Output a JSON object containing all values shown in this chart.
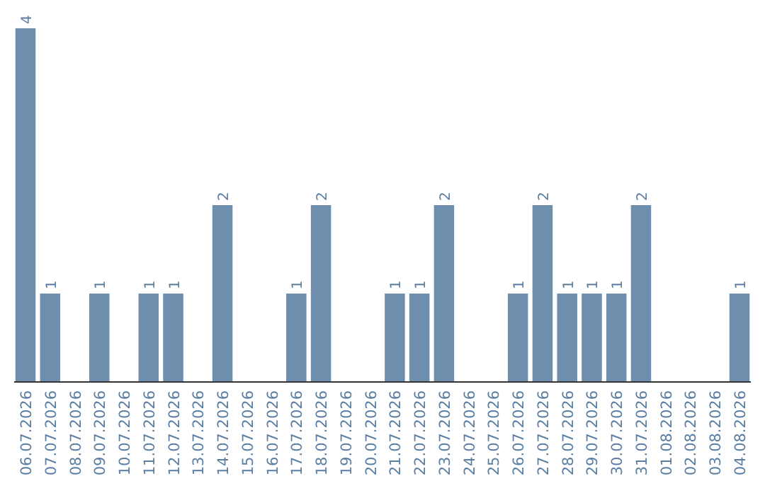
{
  "chart_data": {
    "type": "bar",
    "categories": [
      "06.07.2026",
      "07.07.2026",
      "08.07.2026",
      "09.07.2026",
      "10.07.2026",
      "11.07.2026",
      "12.07.2026",
      "13.07.2026",
      "14.07.2026",
      "15.07.2026",
      "16.07.2026",
      "17.07.2026",
      "18.07.2026",
      "19.07.2026",
      "20.07.2026",
      "21.07.2026",
      "22.07.2026",
      "23.07.2026",
      "24.07.2026",
      "25.07.2026",
      "26.07.2026",
      "27.07.2026",
      "28.07.2026",
      "29.07.2026",
      "30.07.2026",
      "31.07.2026",
      "01.08.2026",
      "02.08.2026",
      "03.08.2026",
      "04.08.2026"
    ],
    "values": [
      4,
      1,
      0,
      1,
      0,
      1,
      1,
      0,
      2,
      0,
      0,
      1,
      2,
      0,
      0,
      1,
      1,
      2,
      0,
      0,
      1,
      2,
      1,
      1,
      1,
      2,
      0,
      0,
      0,
      1
    ],
    "value_labels": [
      "4",
      "1",
      null,
      "1",
      null,
      "1",
      "1",
      null,
      "2",
      null,
      null,
      "1",
      "2",
      null,
      null,
      "1",
      "1",
      "2",
      null,
      null,
      "1",
      "2",
      "1",
      "1",
      "1",
      "2",
      null,
      null,
      null,
      "1"
    ],
    "color": "#6d8fad"
  }
}
